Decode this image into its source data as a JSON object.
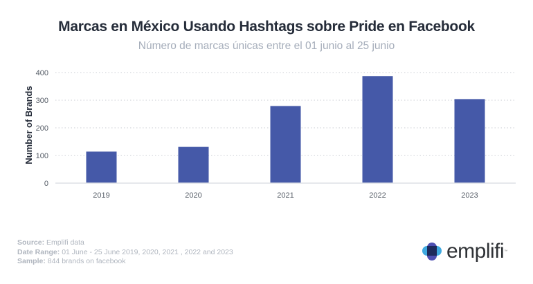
{
  "header": {
    "title": "Marcas en México Usando Hashtags sobre Pride en Facebook",
    "subtitle": "Número de marcas únicas entre el 01 junio al 25 junio"
  },
  "chart_data": {
    "type": "bar",
    "title": "Marcas en México Usando Hashtags sobre Pride en Facebook",
    "subtitle": "Número de marcas únicas entre el 01 junio al 25 junio",
    "xlabel": "",
    "ylabel": "Number of Brands",
    "categories": [
      "2019",
      "2020",
      "2021",
      "2022",
      "2023"
    ],
    "values": [
      114,
      131,
      279,
      387,
      304
    ],
    "ylim": [
      0,
      400
    ],
    "yticks": [
      0,
      100,
      200,
      300,
      400
    ],
    "grid": true,
    "legend": "none",
    "bar_color": "#4559a8"
  },
  "footer": {
    "source_label": "Source:",
    "source_value": "Emplifi data",
    "date_label": "Date Range:",
    "date_value": "01 June - 25 June 2019, 2020, 2021 , 2022 and 2023",
    "sample_label": "Sample:",
    "sample_value": "844 brands on facebook"
  },
  "logo": {
    "text": "emplifi",
    "trademark": "™",
    "icon": "emplifi-cross-icon",
    "colors": {
      "light": "#3fa9e0",
      "dark": "#1d2a5c",
      "purple": "#4e4fb3"
    }
  }
}
